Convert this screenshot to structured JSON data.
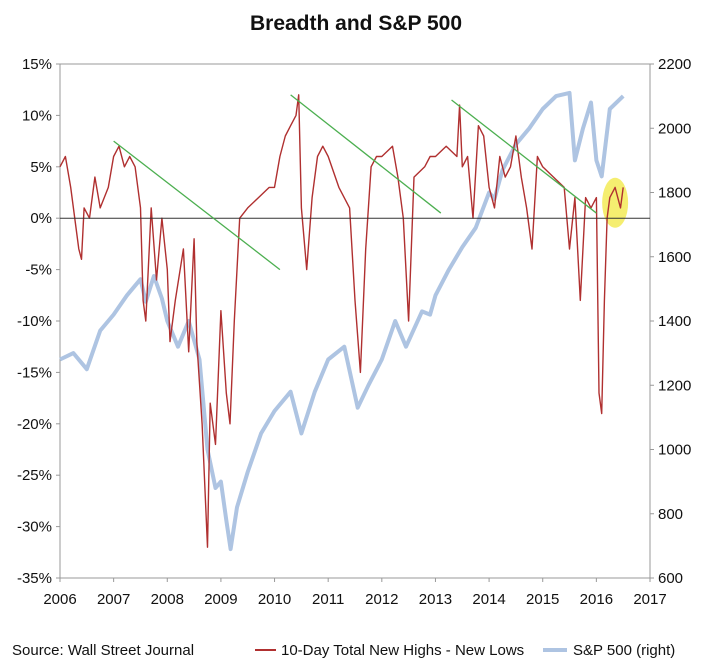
{
  "chart_data": {
    "type": "line",
    "title": "Breadth and S&P 500",
    "source": "Source: Wall Street Journal",
    "x_ticks": [
      "2006",
      "2007",
      "2008",
      "2009",
      "2010",
      "2011",
      "2012",
      "2013",
      "2014",
      "2015",
      "2016",
      "2017"
    ],
    "xlim": [
      2006,
      2017
    ],
    "y_left": {
      "range": [
        -35,
        15
      ],
      "ticks": [
        15,
        10,
        5,
        0,
        -5,
        -10,
        -15,
        -20,
        -25,
        -30,
        -35
      ],
      "tick_labels": [
        "15%",
        "10%",
        "5%",
        "0%",
        "-5%",
        "-10%",
        "-15%",
        "-20%",
        "-25%",
        "-30%",
        "-35%"
      ]
    },
    "y_right": {
      "range": [
        600,
        2200
      ],
      "ticks": [
        2200,
        2000,
        1800,
        1600,
        1400,
        1200,
        1000,
        800,
        600
      ],
      "tick_labels": [
        "2200",
        "2000",
        "1800",
        "1600",
        "1400",
        "1200",
        "1000",
        "800",
        "600"
      ]
    },
    "grid": false,
    "legend_position": "bottom",
    "series": [
      {
        "name": "10-Day Total New Highs - New Lows",
        "axis": "left",
        "color": "#b03030",
        "x": [
          2006.0,
          2006.1,
          2006.2,
          2006.35,
          2006.4,
          2006.45,
          2006.55,
          2006.65,
          2006.75,
          2006.9,
          2007.0,
          2007.1,
          2007.2,
          2007.3,
          2007.4,
          2007.5,
          2007.55,
          2007.6,
          2007.7,
          2007.8,
          2007.9,
          2008.0,
          2008.05,
          2008.15,
          2008.3,
          2008.4,
          2008.5,
          2008.55,
          2008.65,
          2008.75,
          2008.8,
          2008.9,
          2009.0,
          2009.1,
          2009.17,
          2009.25,
          2009.35,
          2009.5,
          2009.7,
          2009.9,
          2010.0,
          2010.1,
          2010.2,
          2010.3,
          2010.4,
          2010.45,
          2010.5,
          2010.6,
          2010.7,
          2010.8,
          2010.9,
          2011.0,
          2011.2,
          2011.4,
          2011.5,
          2011.6,
          2011.7,
          2011.8,
          2011.9,
          2012.0,
          2012.2,
          2012.3,
          2012.4,
          2012.5,
          2012.6,
          2012.8,
          2012.9,
          2013.0,
          2013.2,
          2013.4,
          2013.45,
          2013.5,
          2013.6,
          2013.7,
          2013.8,
          2013.9,
          2014.0,
          2014.1,
          2014.2,
          2014.3,
          2014.4,
          2014.5,
          2014.6,
          2014.7,
          2014.8,
          2014.9,
          2015.0,
          2015.2,
          2015.4,
          2015.5,
          2015.6,
          2015.7,
          2015.8,
          2015.9,
          2016.0,
          2016.05,
          2016.1,
          2016.15,
          2016.2,
          2016.25,
          2016.35,
          2016.45,
          2016.5
        ],
        "values": [
          5,
          6,
          3,
          -3,
          -4,
          1,
          0,
          4,
          1,
          3,
          6,
          7,
          5,
          6,
          5,
          1,
          -8,
          -10,
          1,
          -6,
          0,
          -5,
          -12,
          -8,
          -3,
          -13,
          -2,
          -12,
          -20,
          -32,
          -18,
          -22,
          -9,
          -17,
          -20,
          -10,
          0,
          1,
          2,
          3,
          3,
          6,
          8,
          9,
          10,
          12,
          1,
          -5,
          2,
          6,
          7,
          6,
          3,
          1,
          -8,
          -15,
          -3,
          5,
          6,
          6,
          7,
          4,
          0,
          -10,
          4,
          5,
          6,
          6,
          7,
          6,
          11,
          5,
          6,
          0,
          9,
          8,
          3,
          1,
          6,
          4,
          5,
          8,
          4,
          1,
          -3,
          6,
          5,
          4,
          3,
          -3,
          2,
          -8,
          2,
          1,
          2,
          -17,
          -19,
          -8,
          0,
          2,
          3,
          1,
          3
        ]
      },
      {
        "name": "S&P 500 (right)",
        "axis": "right",
        "color": "#aec4e2",
        "x": [
          2006.0,
          2006.25,
          2006.5,
          2006.75,
          2007.0,
          2007.25,
          2007.5,
          2007.6,
          2007.75,
          2007.9,
          2008.0,
          2008.2,
          2008.4,
          2008.6,
          2008.75,
          2008.9,
          2009.0,
          2009.1,
          2009.18,
          2009.3,
          2009.5,
          2009.75,
          2010.0,
          2010.3,
          2010.5,
          2010.75,
          2011.0,
          2011.3,
          2011.55,
          2011.75,
          2012.0,
          2012.25,
          2012.45,
          2012.75,
          2012.9,
          2013.0,
          2013.25,
          2013.5,
          2013.75,
          2014.0,
          2014.1,
          2014.25,
          2014.5,
          2014.75,
          2015.0,
          2015.25,
          2015.5,
          2015.6,
          2015.75,
          2015.9,
          2016.0,
          2016.1,
          2016.25,
          2016.5
        ],
        "values": [
          1280,
          1300,
          1250,
          1370,
          1420,
          1480,
          1530,
          1460,
          1540,
          1470,
          1400,
          1320,
          1400,
          1280,
          1000,
          880,
          900,
          780,
          690,
          820,
          930,
          1050,
          1120,
          1180,
          1050,
          1180,
          1280,
          1320,
          1130,
          1200,
          1280,
          1400,
          1320,
          1430,
          1420,
          1480,
          1560,
          1630,
          1690,
          1800,
          1780,
          1870,
          1950,
          2000,
          2060,
          2100,
          2110,
          1900,
          2000,
          2080,
          1900,
          1850,
          2060,
          2100
        ]
      }
    ],
    "annotations": [
      {
        "type": "trendline",
        "color": "#4caf50",
        "x": [
          2007.0,
          2010.1
        ],
        "y_left": [
          7.5,
          -5
        ]
      },
      {
        "type": "trendline",
        "color": "#4caf50",
        "x": [
          2010.3,
          2013.1
        ],
        "y_left": [
          12,
          0.5
        ]
      },
      {
        "type": "trendline",
        "color": "#4caf50",
        "x": [
          2013.3,
          2016.0
        ],
        "y_left": [
          11.5,
          0.5
        ]
      },
      {
        "type": "highlight",
        "color": "#f2ea4c",
        "x": 2016.35,
        "y_left": 1.5
      }
    ]
  }
}
